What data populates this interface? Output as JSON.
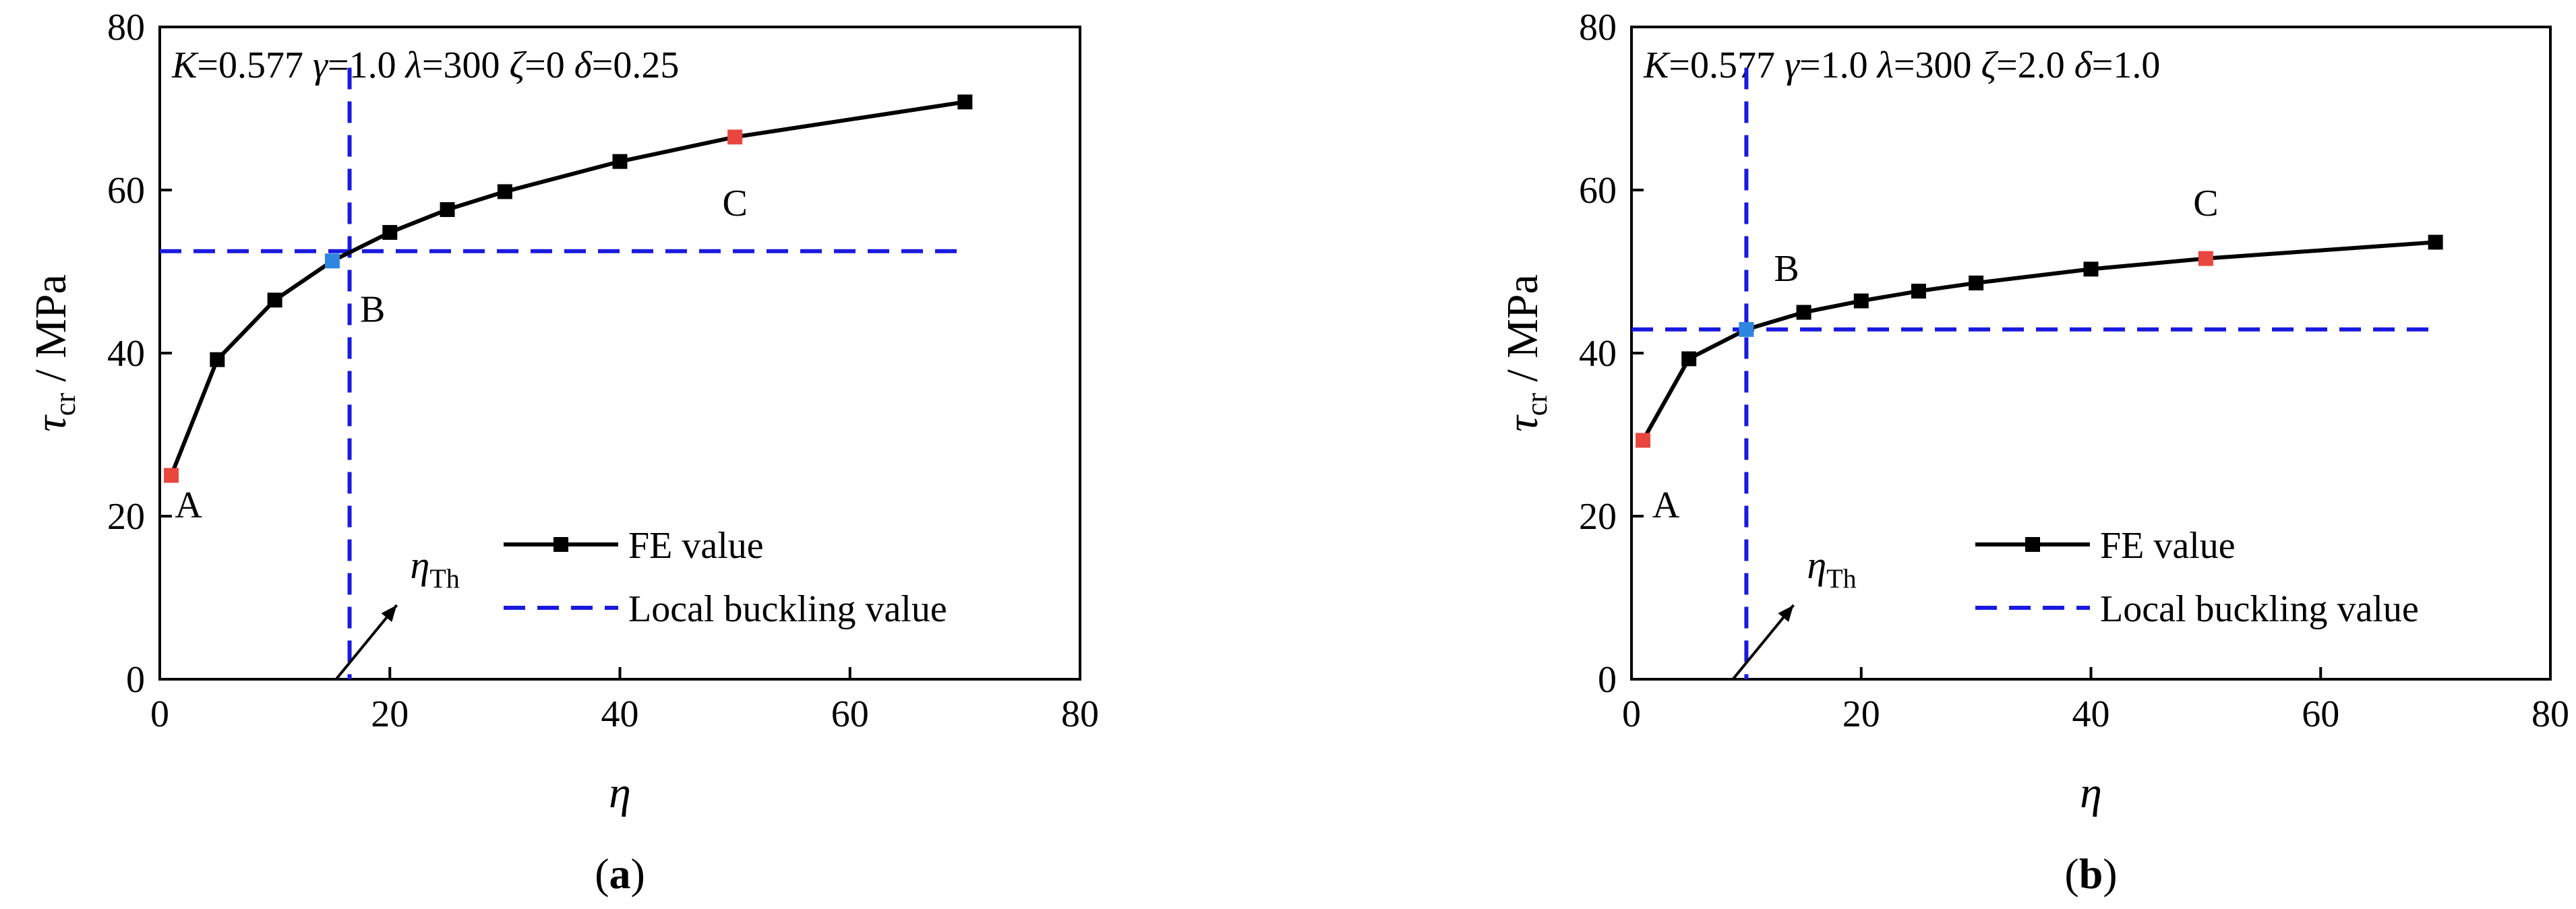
{
  "chart_data": [
    {
      "panel_label": "(a)",
      "panel_label_parts": {
        "open": "(",
        "letter": "a",
        "close": ")"
      },
      "type": "line",
      "xlabel": "η",
      "ylabel": "τ",
      "ylabel_sub": "cr",
      "ylabel_unit": " / MPa",
      "xlim": [
        0,
        80
      ],
      "ylim": [
        0,
        80
      ],
      "xticks": [
        0,
        20,
        40,
        60,
        80
      ],
      "yticks": [
        0,
        20,
        40,
        60,
        80
      ],
      "params": [
        {
          "sym": "K",
          "val": "=0.577 "
        },
        {
          "sym": "γ",
          "val": "=1.0 "
        },
        {
          "sym": "λ",
          "val": "=300 "
        },
        {
          "sym": "ζ",
          "val": "=0 "
        },
        {
          "sym": "δ",
          "val": "=0.25"
        }
      ],
      "series": [
        {
          "name": "FE value",
          "x": [
            1,
            5,
            10,
            15,
            20,
            25,
            30,
            40,
            50,
            70
          ],
          "y": [
            25.0,
            39.2,
            46.5,
            51.3,
            54.8,
            57.6,
            59.8,
            63.5,
            66.5,
            70.8
          ],
          "color": "#000000"
        },
        {
          "name": "Local buckling value",
          "y_const": 52.5,
          "x_range": [
            0,
            70
          ],
          "color": "#1a1adf",
          "style": "dashed"
        }
      ],
      "vline": {
        "x": 16.5,
        "color": "#1a1adf"
      },
      "annotations": [
        {
          "text": "A",
          "x": 2.5,
          "y": 21.5
        },
        {
          "text": "B",
          "x": 18.5,
          "y": 45.5
        },
        {
          "text": "C",
          "x": 50,
          "y": 58.5
        }
      ],
      "highlight_points": [
        {
          "x": 1,
          "y": 25.0,
          "color": "#e8463f"
        },
        {
          "x": 15,
          "y": 51.3,
          "color": "#2e86de"
        },
        {
          "x": 50,
          "y": 66.5,
          "color": "#e8463f"
        }
      ],
      "eta_th_label": {
        "main": "η",
        "sub": "Th"
      },
      "legend": "lower-right"
    },
    {
      "panel_label": "(b)",
      "panel_label_parts": {
        "open": "(",
        "letter": "b",
        "close": ")"
      },
      "type": "line",
      "xlabel": "η",
      "ylabel": "τ",
      "ylabel_sub": "cr",
      "ylabel_unit": " / MPa",
      "xlim": [
        0,
        80
      ],
      "ylim": [
        0,
        80
      ],
      "xticks": [
        0,
        20,
        40,
        60,
        80
      ],
      "yticks": [
        0,
        20,
        40,
        60,
        80
      ],
      "params": [
        {
          "sym": "K",
          "val": "=0.577 "
        },
        {
          "sym": "γ",
          "val": "=1.0 "
        },
        {
          "sym": "λ",
          "val": "=300 "
        },
        {
          "sym": "ζ",
          "val": "=2.0 "
        },
        {
          "sym": "δ",
          "val": "=1.0"
        }
      ],
      "series": [
        {
          "name": "FE value",
          "x": [
            1,
            5,
            10,
            15,
            20,
            25,
            30,
            40,
            50,
            70
          ],
          "y": [
            29.3,
            39.3,
            42.9,
            45.0,
            46.4,
            47.6,
            48.6,
            50.3,
            51.6,
            53.6
          ],
          "color": "#000000"
        },
        {
          "name": "Local buckling value",
          "y_const": 42.9,
          "x_range": [
            0,
            70
          ],
          "color": "#1a1adf",
          "style": "dashed"
        }
      ],
      "vline": {
        "x": 10,
        "color": "#1a1adf"
      },
      "annotations": [
        {
          "text": "A",
          "x": 3,
          "y": 21.5
        },
        {
          "text": "B",
          "x": 13.5,
          "y": 50.5
        },
        {
          "text": "C",
          "x": 50,
          "y": 58.5
        }
      ],
      "highlight_points": [
        {
          "x": 1,
          "y": 29.3,
          "color": "#e8463f"
        },
        {
          "x": 10,
          "y": 42.9,
          "color": "#2e86de"
        },
        {
          "x": 50,
          "y": 51.6,
          "color": "#e8463f"
        }
      ],
      "eta_th_label": {
        "main": "η",
        "sub": "Th"
      },
      "legend": "lower-right"
    }
  ]
}
